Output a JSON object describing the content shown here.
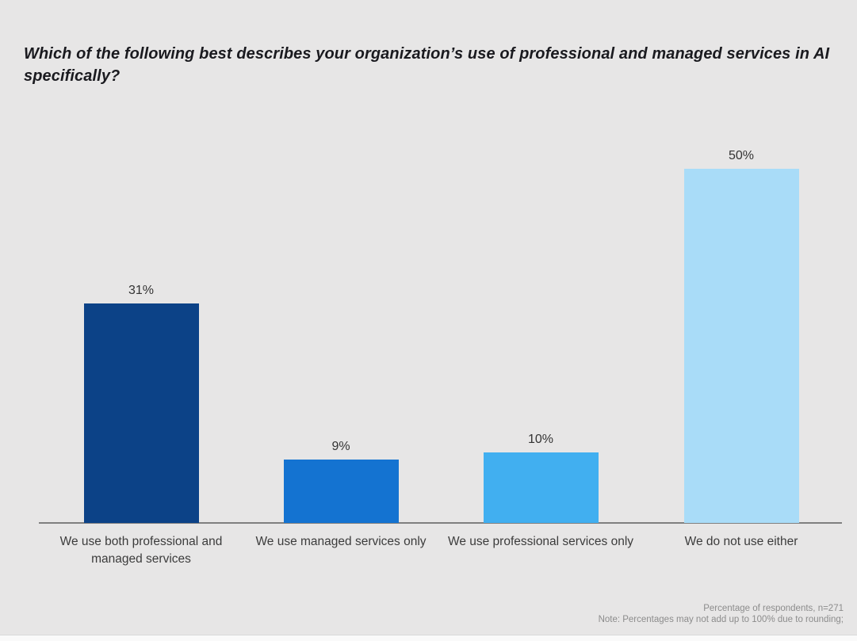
{
  "page": {
    "background_color": "#E7E6E6",
    "axis_color": "#7F7F7F",
    "title_color": "#1A1A1F",
    "label_color": "#3C3C3C",
    "footnote_color": "#8C8C8C"
  },
  "title": "Which of the following best describes your organization’s use of professional and managed services in AI specifically?",
  "footnote": {
    "line1": "Percentage of respondents, n=271",
    "line2": "Note: Percentages may not add up to 100% due to rounding;"
  },
  "chart_data": {
    "type": "bar",
    "title": "Which of the following best describes your organization’s use of professional and managed services in AI specifically?",
    "categories": [
      "We use both professional and managed services",
      "We use managed services only",
      "We use professional services only",
      "We do not use either"
    ],
    "values": [
      31,
      9,
      10,
      50
    ],
    "value_labels": [
      "31%",
      "9%",
      "10%",
      "50%"
    ],
    "bar_colors": [
      "#0C4287",
      "#1473D1",
      "#41AFF0",
      "#A9DCF8"
    ],
    "xlabel": "",
    "ylabel": "",
    "ylim": [
      0,
      56
    ],
    "grid": false,
    "legend": false,
    "value_labels_position": "above-bars",
    "axis": "x-baseline-only",
    "source_note": "Percentage of respondents, n=271",
    "rounding_note": "Note: Percentages may not add up to 100% due to rounding;"
  }
}
